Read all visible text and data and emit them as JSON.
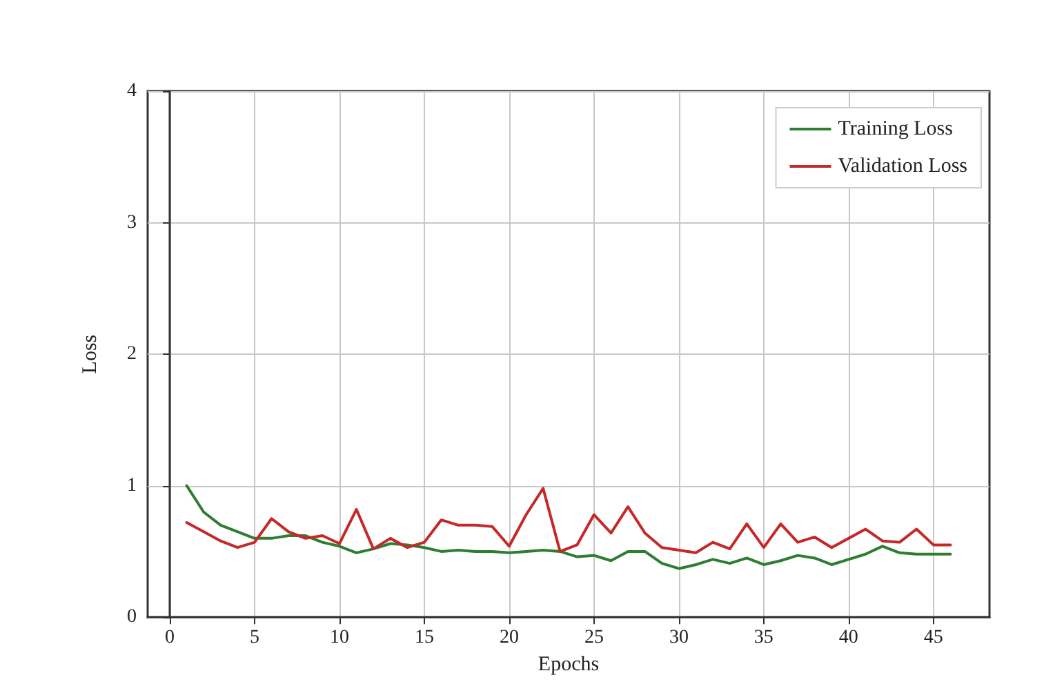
{
  "chart_data": {
    "type": "line",
    "xlabel": "Epochs",
    "ylabel": "Loss",
    "x": [
      1,
      2,
      3,
      4,
      5,
      6,
      7,
      8,
      9,
      10,
      11,
      12,
      13,
      14,
      15,
      16,
      17,
      18,
      19,
      20,
      21,
      22,
      23,
      24,
      25,
      26,
      27,
      28,
      29,
      30,
      31,
      32,
      33,
      34,
      35,
      36,
      37,
      38,
      39,
      40,
      41,
      42,
      43,
      44,
      45,
      46
    ],
    "series": [
      {
        "name": "Training Loss",
        "color": "#2e7d32",
        "values": [
          1.0,
          0.8,
          0.7,
          0.65,
          0.6,
          0.6,
          0.62,
          0.62,
          0.57,
          0.54,
          0.49,
          0.52,
          0.56,
          0.55,
          0.53,
          0.5,
          0.51,
          0.5,
          0.5,
          0.49,
          0.5,
          0.51,
          0.5,
          0.46,
          0.47,
          0.43,
          0.5,
          0.5,
          0.41,
          0.37,
          0.4,
          0.44,
          0.41,
          0.45,
          0.4,
          0.43,
          0.47,
          0.45,
          0.4,
          0.44,
          0.48,
          0.54,
          0.49,
          0.48,
          0.48,
          0.48
        ]
      },
      {
        "name": "Validation Loss",
        "color": "#c62828",
        "values": [
          0.72,
          0.65,
          0.58,
          0.53,
          0.57,
          0.75,
          0.65,
          0.6,
          0.62,
          0.56,
          0.82,
          0.52,
          0.6,
          0.53,
          0.57,
          0.74,
          0.7,
          0.7,
          0.69,
          0.54,
          0.78,
          0.98,
          0.5,
          0.55,
          0.78,
          0.64,
          0.84,
          0.64,
          0.53,
          0.51,
          0.49,
          0.57,
          0.52,
          0.71,
          0.53,
          0.71,
          0.57,
          0.61,
          0.53,
          0.6,
          0.67,
          0.58,
          0.57,
          0.67,
          0.55,
          0.55
        ]
      }
    ],
    "xlim": [
      -1.3,
      48.3
    ],
    "xticks": [
      0,
      5,
      10,
      15,
      20,
      25,
      30,
      35,
      40,
      45
    ],
    "ylim": [
      0,
      4
    ],
    "yticks": [
      0,
      1,
      2,
      3,
      4
    ],
    "grid": true,
    "legend": "top right",
    "marker": "none",
    "line_style": "solid"
  }
}
